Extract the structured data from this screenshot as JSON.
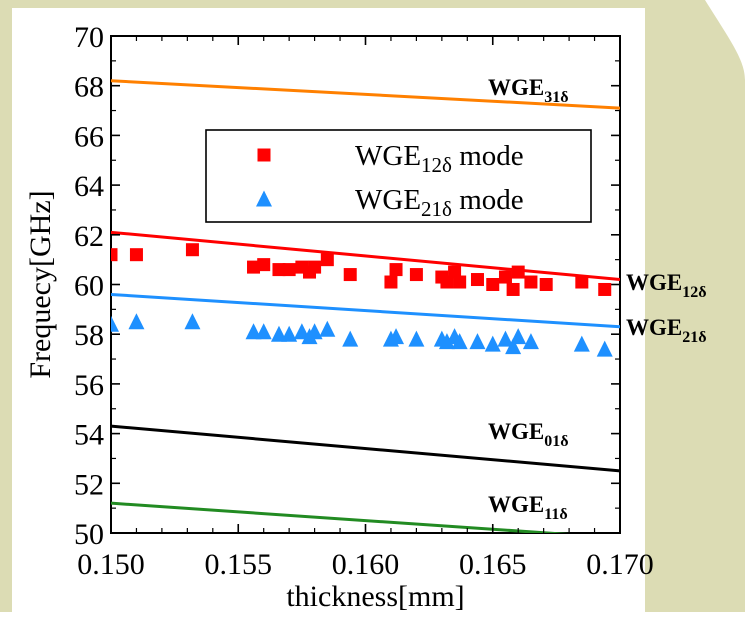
{
  "colors": {
    "panel_background": "#ffffff",
    "decor_background": "#dcdcb4",
    "axis": "#000000"
  },
  "chart_data": {
    "type": "scatter",
    "xlabel": "thickness[mm]",
    "ylabel": "Frequecy[GHz]",
    "xlim": [
      0.15,
      0.17
    ],
    "ylim": [
      50,
      70
    ],
    "xticks": [
      0.15,
      0.155,
      0.16,
      0.165,
      0.17
    ],
    "xtick_labels": [
      "0.150",
      "0.155",
      "0.160",
      "0.165",
      "0.170"
    ],
    "yticks": [
      50,
      52,
      54,
      56,
      58,
      60,
      62,
      64,
      66,
      68,
      70
    ],
    "ytick_labels": [
      "50",
      "52",
      "54",
      "56",
      "58",
      "60",
      "62",
      "64",
      "66",
      "68",
      "70"
    ],
    "grid": false,
    "legend_position": "upper-right",
    "series": [
      {
        "name": "WGE12δ mode",
        "legend_main": "WGE",
        "legend_sub": "12δ",
        "legend_suffix": " mode",
        "marker": "square",
        "color": "#ff0000",
        "x": [
          0.15,
          0.151,
          0.1532,
          0.1556,
          0.156,
          0.1566,
          0.157,
          0.1575,
          0.1578,
          0.158,
          0.1585,
          0.1594,
          0.161,
          0.1612,
          0.162,
          0.163,
          0.1632,
          0.1635,
          0.1637,
          0.1644,
          0.165,
          0.1655,
          0.1658,
          0.166,
          0.1665,
          0.1671,
          0.1685,
          0.1694
        ],
        "y": [
          61.2,
          61.2,
          61.4,
          60.7,
          60.8,
          60.6,
          60.6,
          60.7,
          60.5,
          60.7,
          61.0,
          60.4,
          60.1,
          60.6,
          60.4,
          60.3,
          60.1,
          60.5,
          60.1,
          60.2,
          60.0,
          60.3,
          59.8,
          60.5,
          60.1,
          60.0,
          60.1,
          59.8
        ]
      },
      {
        "name": "WGE21δ mode",
        "legend_main": "WGE",
        "legend_sub": "21δ",
        "legend_suffix": " mode",
        "marker": "triangle",
        "color": "#1e90ff",
        "x": [
          0.15,
          0.151,
          0.1532,
          0.1556,
          0.156,
          0.1566,
          0.157,
          0.1575,
          0.1578,
          0.158,
          0.1585,
          0.1594,
          0.161,
          0.1612,
          0.162,
          0.163,
          0.1632,
          0.1635,
          0.1637,
          0.1644,
          0.165,
          0.1655,
          0.1658,
          0.166,
          0.1665,
          0.1685,
          0.1694
        ],
        "y": [
          58.4,
          58.5,
          58.5,
          58.1,
          58.1,
          58.0,
          58.0,
          58.1,
          57.9,
          58.1,
          58.2,
          57.8,
          57.8,
          57.9,
          57.8,
          57.8,
          57.7,
          57.9,
          57.7,
          57.7,
          57.6,
          57.8,
          57.5,
          57.9,
          57.7,
          57.6,
          57.4
        ]
      }
    ],
    "lines": [
      {
        "label_main": "WGE",
        "label_sub": "31δ",
        "color": "#ff8000",
        "y_start": 68.2,
        "y_end": 67.1
      },
      {
        "label_main": "WGE",
        "label_sub": "12δ",
        "color": "#ff0000",
        "y_start": 62.1,
        "y_end": 60.2
      },
      {
        "label_main": "WGE",
        "label_sub": "21δ",
        "color": "#1e90ff",
        "y_start": 59.6,
        "y_end": 58.3
      },
      {
        "label_main": "WGE",
        "label_sub": "01δ",
        "color": "#000000",
        "y_start": 54.3,
        "y_end": 52.5
      },
      {
        "label_main": "WGE",
        "label_sub": "11δ",
        "color": "#228b22",
        "y_start": 51.2,
        "y_end": 49.8
      }
    ]
  }
}
